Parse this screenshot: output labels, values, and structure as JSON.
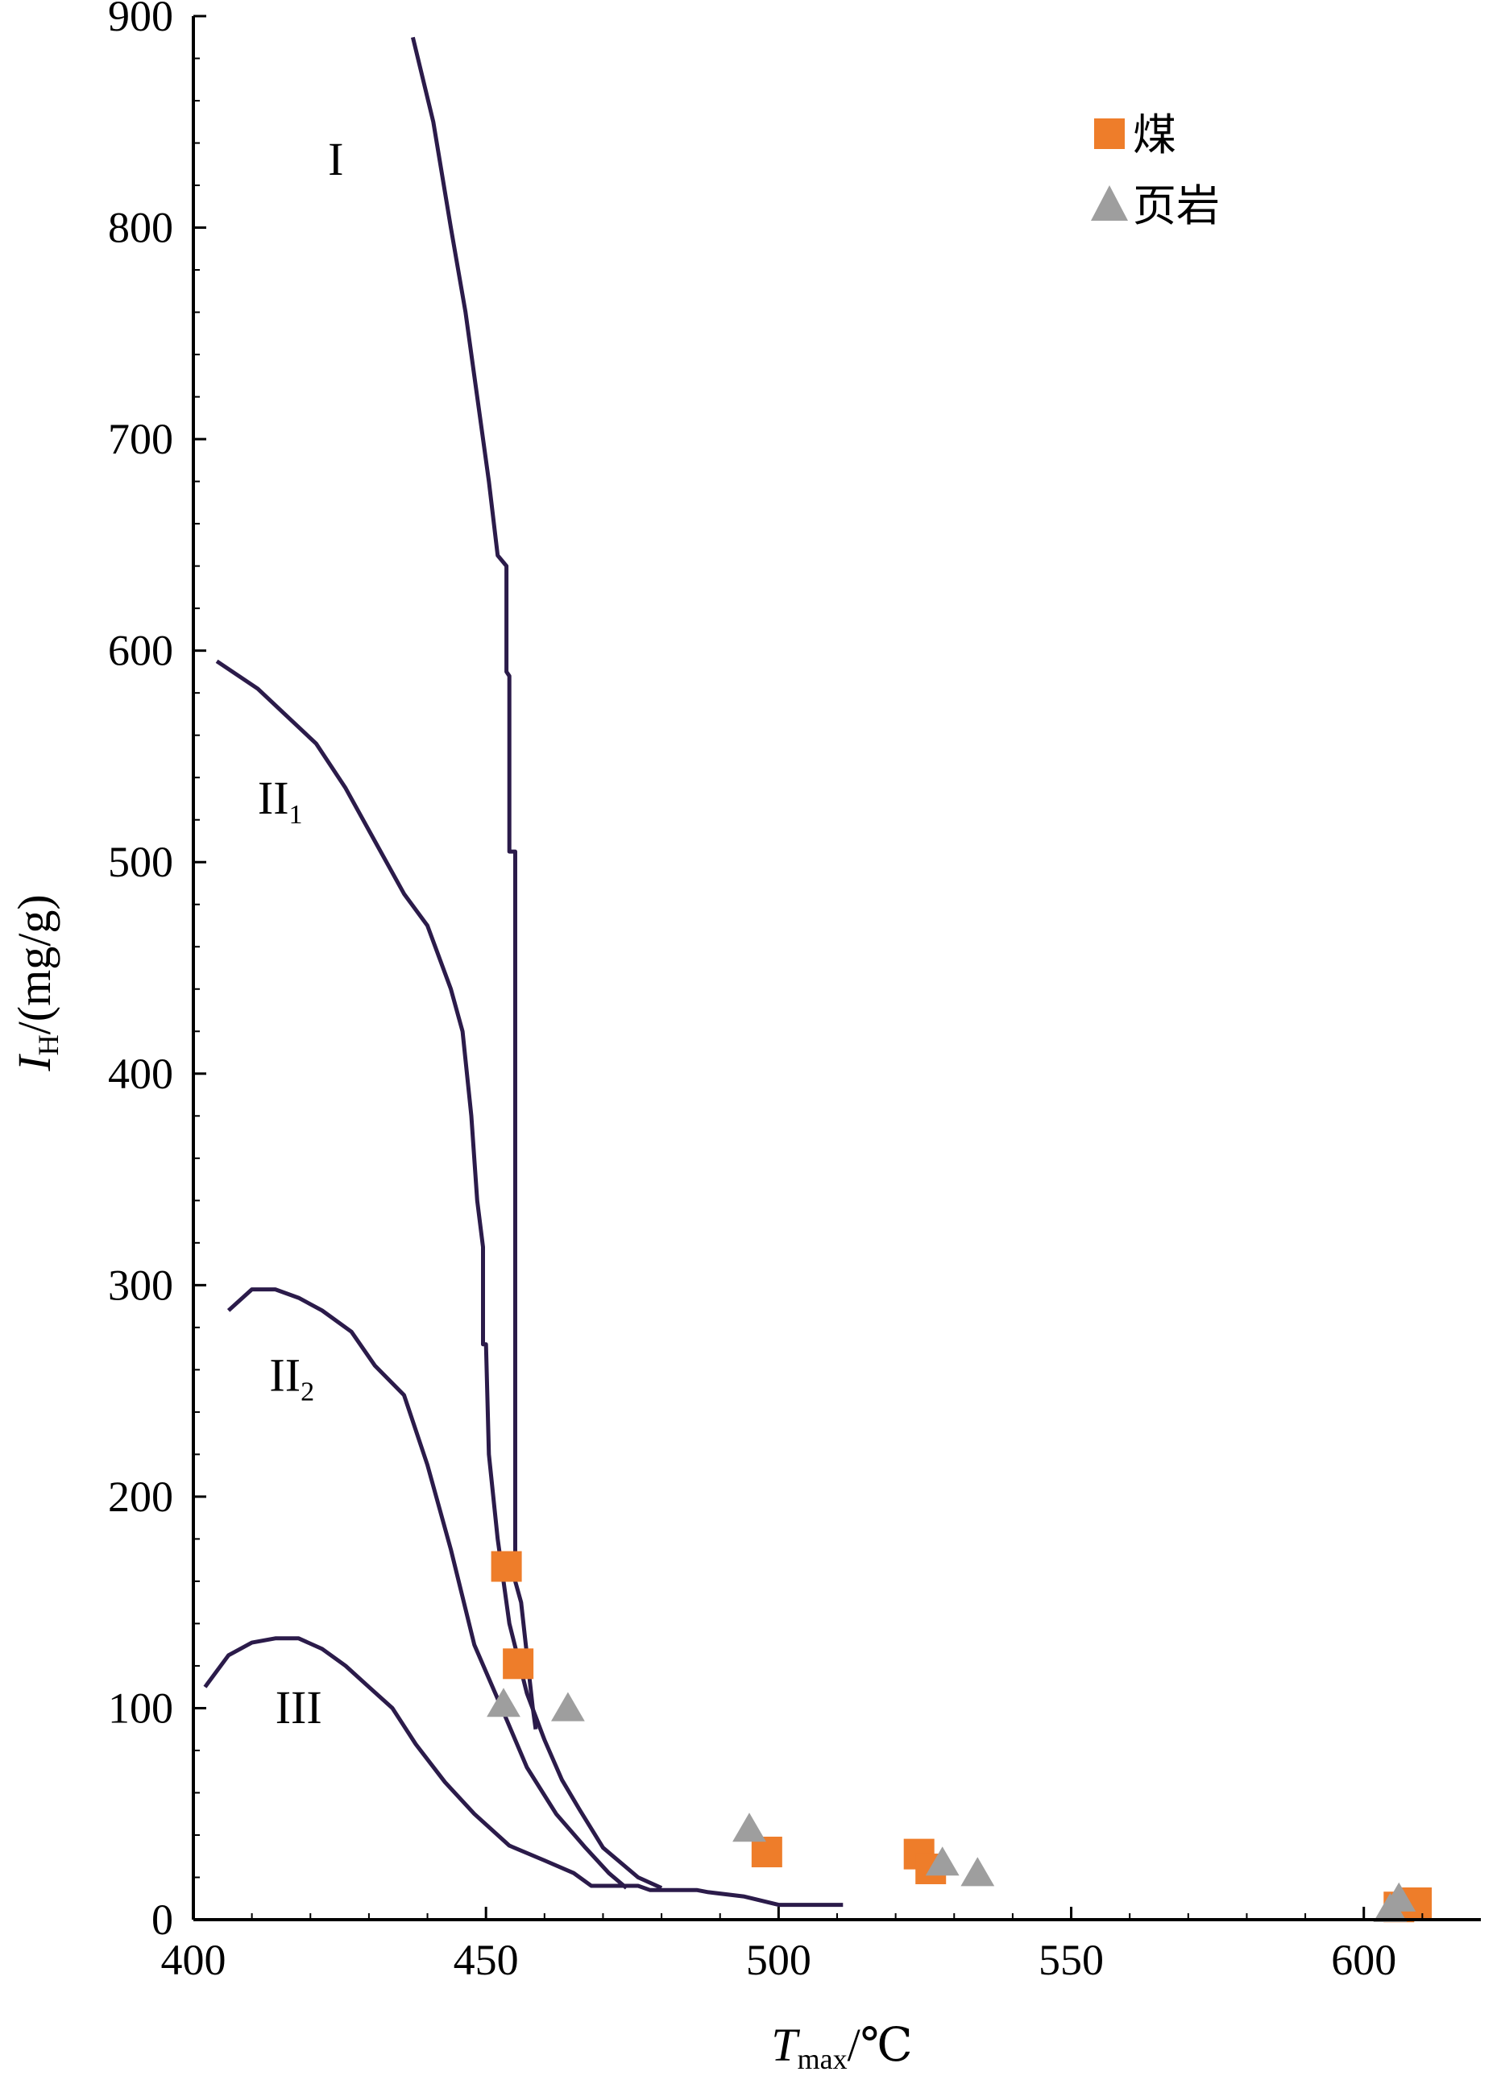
{
  "chart_data": {
    "type": "scatter",
    "title": "",
    "xlabel": {
      "main": "T",
      "sub": "max",
      "unit": "/℃"
    },
    "ylabel": {
      "main": "I",
      "sub": "H",
      "unit": "/(mg/g)"
    },
    "xlim": [
      400,
      620
    ],
    "ylim": [
      0,
      900
    ],
    "xticks": [
      400,
      450,
      500,
      550,
      600
    ],
    "yticks": [
      0,
      100,
      200,
      300,
      400,
      500,
      600,
      700,
      800,
      900
    ],
    "grid": false,
    "legend_position": "top-right",
    "curve_color": "#2b1b4a",
    "curves": [
      {
        "label": "I",
        "label_sub": "",
        "label_at": [
          423,
          825
        ],
        "points": [
          [
            437.5,
            890
          ],
          [
            441,
            850
          ],
          [
            444,
            800
          ],
          [
            446.5,
            760
          ],
          [
            448.5,
            720
          ],
          [
            450.5,
            680
          ],
          [
            452,
            645
          ],
          [
            453.5,
            640
          ],
          [
            453.5,
            590
          ],
          [
            454,
            588
          ],
          [
            454,
            505
          ],
          [
            455,
            505
          ],
          [
            455,
            160
          ],
          [
            456,
            150
          ],
          [
            458,
            100
          ],
          [
            458.5,
            90
          ]
        ]
      },
      {
        "label": "II",
        "label_sub": "1",
        "label_at": [
          411,
          523
        ],
        "points": [
          [
            404,
            595
          ],
          [
            411,
            582
          ],
          [
            416,
            569
          ],
          [
            421,
            556
          ],
          [
            426,
            535
          ],
          [
            431,
            510
          ],
          [
            436,
            485
          ],
          [
            440,
            470
          ],
          [
            444,
            440
          ],
          [
            446,
            420
          ],
          [
            447.5,
            380
          ],
          [
            448.5,
            340
          ],
          [
            449.5,
            318
          ],
          [
            449.5,
            272
          ],
          [
            450,
            272
          ],
          [
            450.5,
            220
          ],
          [
            452,
            180
          ],
          [
            454,
            140
          ],
          [
            457,
            107
          ],
          [
            460,
            85
          ],
          [
            463,
            66
          ],
          [
            466,
            52
          ],
          [
            470,
            34
          ],
          [
            476,
            20
          ],
          [
            480,
            15
          ]
        ]
      },
      {
        "label": "II",
        "label_sub": "2",
        "label_at": [
          413,
          250
        ],
        "points": [
          [
            406,
            288
          ],
          [
            410,
            298
          ],
          [
            414,
            298
          ],
          [
            418,
            294
          ],
          [
            422,
            288
          ],
          [
            427,
            278
          ],
          [
            431,
            262
          ],
          [
            436,
            248
          ],
          [
            440,
            215
          ],
          [
            444,
            175
          ],
          [
            448,
            130
          ],
          [
            453,
            98
          ],
          [
            457,
            72
          ],
          [
            462,
            50
          ],
          [
            467,
            34
          ],
          [
            471,
            22
          ],
          [
            474,
            15
          ]
        ]
      },
      {
        "label": "III",
        "label_sub": "",
        "label_at": [
          414,
          93
        ],
        "points": [
          [
            402,
            110
          ],
          [
            406,
            125
          ],
          [
            410,
            131
          ],
          [
            414,
            133
          ],
          [
            418,
            133
          ],
          [
            422,
            128
          ],
          [
            426,
            120
          ],
          [
            430,
            110
          ],
          [
            434,
            100
          ],
          [
            438,
            83
          ],
          [
            443,
            65
          ],
          [
            448,
            50
          ],
          [
            454,
            35
          ],
          [
            460,
            28
          ],
          [
            465,
            22
          ],
          [
            468,
            16
          ],
          [
            476,
            16
          ],
          [
            478,
            14
          ],
          [
            486,
            14
          ],
          [
            488,
            13
          ],
          [
            494,
            11
          ],
          [
            500,
            7
          ],
          [
            511,
            7
          ]
        ]
      }
    ],
    "series": [
      {
        "name": "煤",
        "marker": "square",
        "color": "#ee7d2a",
        "points": [
          [
            453.5,
            167
          ],
          [
            455.5,
            121
          ],
          [
            498,
            32
          ],
          [
            524,
            31
          ],
          [
            526,
            24
          ],
          [
            606,
            6
          ],
          [
            609,
            8
          ]
        ]
      },
      {
        "name": "页岩",
        "marker": "triangle",
        "color": "#9e9e9e",
        "points": [
          [
            453,
            102
          ],
          [
            464,
            100
          ],
          [
            495,
            43
          ],
          [
            528,
            27
          ],
          [
            534,
            22
          ],
          [
            604.5,
            5
          ],
          [
            606,
            10
          ]
        ]
      }
    ]
  }
}
